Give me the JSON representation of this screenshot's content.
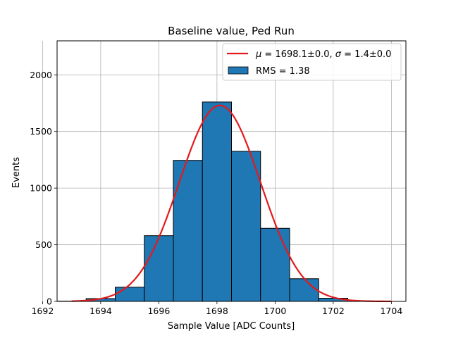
{
  "chart_data": {
    "type": "bar",
    "title": "Baseline value, Ped Run",
    "xlabel": "Sample Value [ADC Counts]",
    "ylabel": "Events",
    "xlim": [
      1692.5,
      1704.5
    ],
    "ylim": [
      0,
      2300
    ],
    "xticks": [
      1692,
      1694,
      1696,
      1698,
      1700,
      1702,
      1704
    ],
    "yticks": [
      0,
      500,
      1000,
      1500,
      2000
    ],
    "grid": true,
    "legend_position": "top-right",
    "histogram": {
      "name": "RMS = 1.38",
      "color": "#1f77b4",
      "bin_centers": [
        1693,
        1694,
        1695,
        1696,
        1697,
        1698,
        1699,
        1700,
        1701,
        1702,
        1703
      ],
      "bin_width": 1,
      "values": [
        2,
        25,
        125,
        580,
        1245,
        1760,
        1325,
        645,
        200,
        28,
        2
      ]
    },
    "fit": {
      "name": "μ = 1698.1±0.0, σ = 1.4±0.0",
      "label_parts": {
        "mu_symbol": "μ",
        "mu_text": " = 1698.1±0.0, ",
        "sigma_symbol": "σ",
        "sigma_text": " = 1.4±0.0"
      },
      "color": "#e31a1c",
      "type": "gaussian",
      "mu": 1698.1,
      "sigma": 1.4,
      "amplitude": 1730,
      "x_range": [
        1693,
        1704
      ]
    }
  }
}
